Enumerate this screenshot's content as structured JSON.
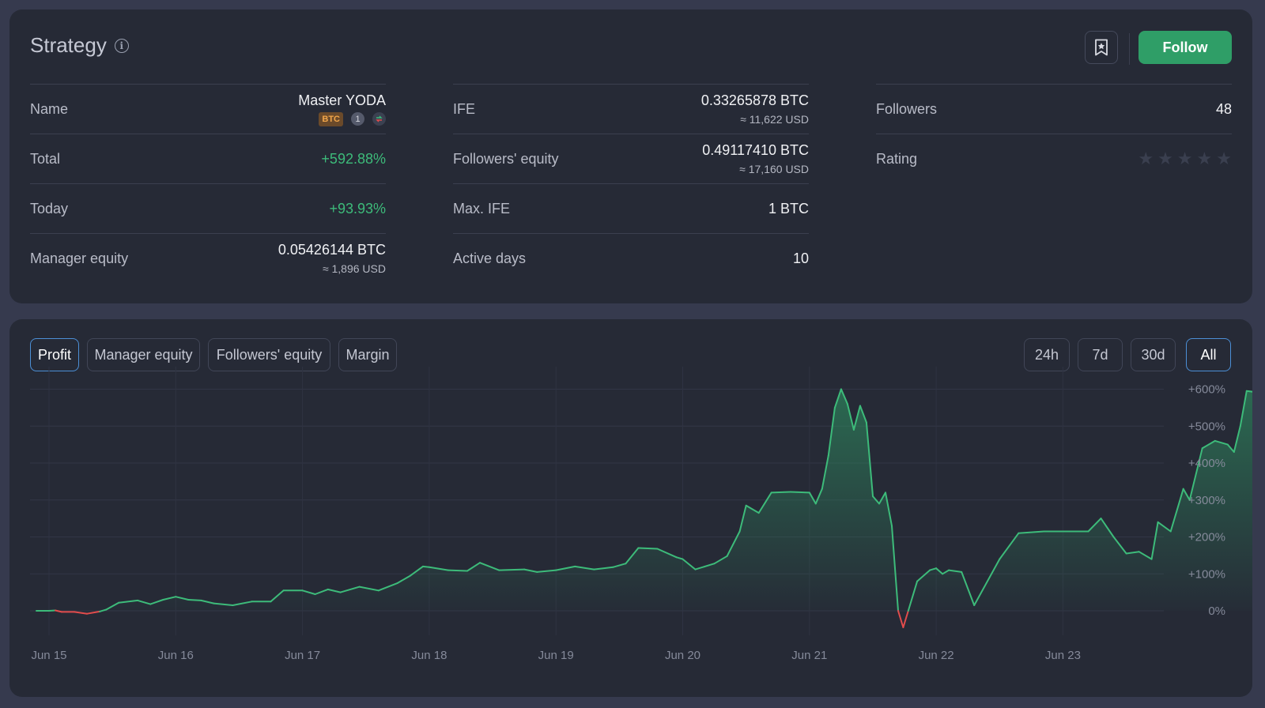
{
  "strategy": {
    "title": "Strategy",
    "follow_label": "Follow",
    "col1": {
      "name_label": "Name",
      "name_value": "Master YODA",
      "badge_currency": "BTC",
      "badge_count": "1",
      "total_label": "Total",
      "total_value": "+592.88%",
      "today_label": "Today",
      "today_value": "+93.93%",
      "manager_equity_label": "Manager equity",
      "manager_equity_value": "0.05426144 BTC",
      "manager_equity_usd": "≈ 1,896 USD"
    },
    "col2": {
      "ife_label": "IFE",
      "ife_value": "0.33265878 BTC",
      "ife_usd": "≈ 11,622 USD",
      "followers_equity_label": "Followers' equity",
      "followers_equity_value": "0.49117410 BTC",
      "followers_equity_usd": "≈ 17,160 USD",
      "max_ife_label": "Max. IFE",
      "max_ife_value": "1 BTC",
      "active_days_label": "Active days",
      "active_days_value": "10"
    },
    "col3": {
      "followers_label": "Followers",
      "followers_value": "48",
      "rating_label": "Rating",
      "rating_stars": 0
    }
  },
  "chart_panel": {
    "tabs": [
      "Profit",
      "Manager equity",
      "Followers' equity",
      "Margin"
    ],
    "active_tab": "Profit",
    "ranges": [
      "24h",
      "7d",
      "30d",
      "All"
    ],
    "active_range": "All"
  },
  "colors": {
    "accent_green": "#2f9e67",
    "line_green": "#3dbb7a",
    "line_red": "#e24c4c",
    "active_border": "#4c8fd6"
  },
  "chart_data": {
    "type": "area",
    "title": "",
    "xlabel": "",
    "ylabel": "",
    "x_ticks": [
      "Jun 15",
      "Jun 16",
      "Jun 17",
      "Jun 18",
      "Jun 19",
      "Jun 20",
      "Jun 21",
      "Jun 22",
      "Jun 23"
    ],
    "y_ticks": [
      "0%",
      "+100%",
      "+200%",
      "+300%",
      "+400%",
      "+500%",
      "+600%"
    ],
    "ylim": [
      -50,
      600
    ],
    "grid": true,
    "y_axis_position": "right",
    "series": [
      {
        "values": [
          [
            14.9,
            0
          ],
          [
            15.0,
            0
          ],
          [
            15.05,
            1
          ],
          [
            15.1,
            -3
          ],
          [
            15.2,
            -3
          ],
          [
            15.3,
            -8
          ],
          [
            15.4,
            -2
          ],
          [
            15.45,
            3
          ],
          [
            15.55,
            22
          ],
          [
            15.7,
            28
          ],
          [
            15.8,
            18
          ],
          [
            15.9,
            30
          ],
          [
            16.0,
            38
          ],
          [
            16.1,
            30
          ],
          [
            16.2,
            28
          ],
          [
            16.3,
            20
          ],
          [
            16.45,
            15
          ],
          [
            16.6,
            25
          ],
          [
            16.75,
            25
          ],
          [
            16.85,
            55
          ],
          [
            17.0,
            55
          ],
          [
            17.1,
            45
          ],
          [
            17.2,
            58
          ],
          [
            17.3,
            50
          ],
          [
            17.45,
            65
          ],
          [
            17.6,
            55
          ],
          [
            17.75,
            75
          ],
          [
            17.85,
            95
          ],
          [
            17.95,
            120
          ],
          [
            18.0,
            118
          ],
          [
            18.15,
            110
          ],
          [
            18.3,
            108
          ],
          [
            18.4,
            130
          ],
          [
            18.55,
            110
          ],
          [
            18.75,
            112
          ],
          [
            18.85,
            105
          ],
          [
            19.0,
            110
          ],
          [
            19.15,
            120
          ],
          [
            19.3,
            112
          ],
          [
            19.45,
            118
          ],
          [
            19.55,
            128
          ],
          [
            19.65,
            170
          ],
          [
            19.8,
            168
          ],
          [
            19.95,
            145
          ],
          [
            20.0,
            140
          ],
          [
            20.1,
            112
          ],
          [
            20.25,
            128
          ],
          [
            20.35,
            148
          ],
          [
            20.45,
            215
          ],
          [
            20.5,
            285
          ],
          [
            20.6,
            265
          ],
          [
            20.7,
            320
          ],
          [
            20.85,
            322
          ],
          [
            21.0,
            320
          ],
          [
            21.05,
            290
          ],
          [
            21.1,
            330
          ],
          [
            21.15,
            420
          ],
          [
            21.2,
            550
          ],
          [
            21.25,
            600
          ],
          [
            21.3,
            560
          ],
          [
            21.35,
            490
          ],
          [
            21.4,
            555
          ],
          [
            21.45,
            510
          ],
          [
            21.5,
            310
          ],
          [
            21.55,
            290
          ],
          [
            21.6,
            320
          ],
          [
            21.65,
            230
          ],
          [
            21.7,
            0
          ],
          [
            21.74,
            -45
          ],
          [
            21.78,
            0
          ],
          [
            21.85,
            80
          ],
          [
            21.95,
            110
          ],
          [
            22.0,
            115
          ],
          [
            22.05,
            100
          ],
          [
            22.1,
            110
          ],
          [
            22.2,
            105
          ],
          [
            22.3,
            15
          ],
          [
            22.5,
            140
          ],
          [
            22.65,
            210
          ],
          [
            22.85,
            215
          ],
          [
            23.0,
            215
          ],
          [
            23.2,
            215
          ],
          [
            23.3,
            250
          ],
          [
            23.4,
            200
          ],
          [
            23.5,
            155
          ],
          [
            23.6,
            160
          ],
          [
            23.7,
            140
          ],
          [
            23.75,
            240
          ],
          [
            23.85,
            215
          ],
          [
            23.95,
            330
          ],
          [
            24.0,
            300
          ],
          [
            24.1,
            440
          ],
          [
            24.2,
            460
          ],
          [
            24.3,
            450
          ],
          [
            24.35,
            430
          ],
          [
            24.4,
            500
          ],
          [
            24.45,
            595
          ],
          [
            24.5,
            592.88
          ]
        ]
      }
    ]
  }
}
